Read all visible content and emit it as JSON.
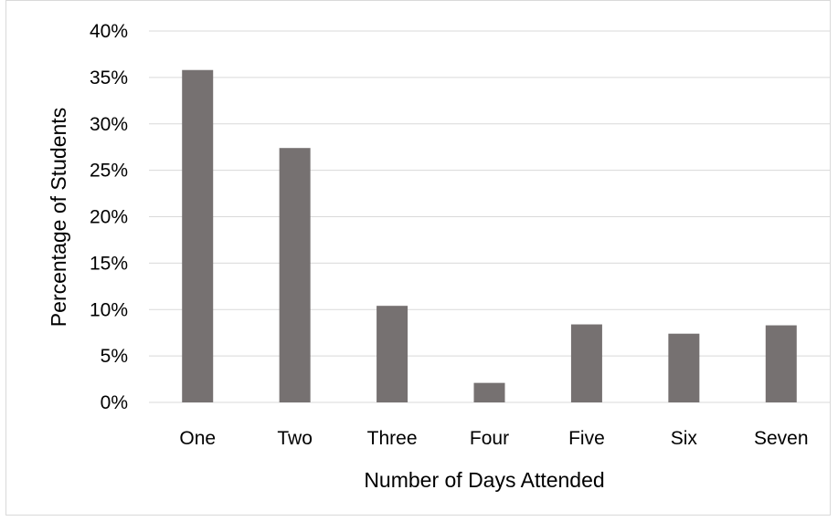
{
  "chart_data": {
    "type": "bar",
    "title": "",
    "xlabel": "Number of Days Attended",
    "ylabel": "Percentage of Students",
    "categories": [
      "One",
      "Two",
      "Three",
      "Four",
      "Five",
      "Six",
      "Seven"
    ],
    "values": [
      35.8,
      27.4,
      10.4,
      2.1,
      8.4,
      7.4,
      8.3
    ],
    "ylim": [
      0,
      40
    ],
    "yticks": [
      "0%",
      "5%",
      "10%",
      "15%",
      "20%",
      "25%",
      "30%",
      "35%",
      "40%"
    ],
    "ytick_values": [
      0,
      5,
      10,
      15,
      20,
      25,
      30,
      35,
      40
    ],
    "grid": true,
    "legend": "none",
    "colors": {
      "bar": "#767171",
      "grid": "#d9d9d9",
      "border": "#d9d9d9"
    }
  }
}
